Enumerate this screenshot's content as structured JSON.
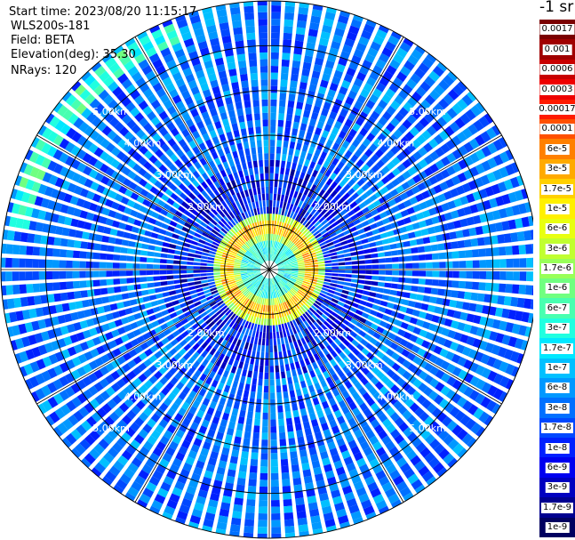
{
  "info": {
    "start_time": "Start time: 2023/08/20 11:15:17",
    "instrument": "WLS200s-181",
    "field": "Field: BETA",
    "elevation": "Elevation(deg): 35.30",
    "nrays": "NRays: 120"
  },
  "colorbar": {
    "unit": "-1 sr",
    "entries": [
      {
        "label": "0.0017",
        "color": "#7a0000"
      },
      {
        "label": "0.001",
        "color": "#a00000"
      },
      {
        "label": "0.0006",
        "color": "#c80000"
      },
      {
        "label": "0.0003",
        "color": "#ee0000"
      },
      {
        "label": "0.00017",
        "color": "#ff1a00"
      },
      {
        "label": "0.0001",
        "color": "#ff5000"
      },
      {
        "label": "6e-5",
        "color": "#ff8000"
      },
      {
        "label": "3e-5",
        "color": "#ffaa00"
      },
      {
        "label": "1.7e-5",
        "color": "#ffd000"
      },
      {
        "label": "1e-5",
        "color": "#fff000"
      },
      {
        "label": "6e-6",
        "color": "#e8ff10"
      },
      {
        "label": "3e-6",
        "color": "#c0ff30"
      },
      {
        "label": "1.7e-6",
        "color": "#98ff58"
      },
      {
        "label": "1e-6",
        "color": "#70ff80"
      },
      {
        "label": "6e-7",
        "color": "#48ffb0"
      },
      {
        "label": "3e-7",
        "color": "#20ffe0"
      },
      {
        "label": "1.7e-7",
        "color": "#00e8ff"
      },
      {
        "label": "1e-7",
        "color": "#00c0ff"
      },
      {
        "label": "6e-8",
        "color": "#0098ff"
      },
      {
        "label": "3e-8",
        "color": "#0070ff"
      },
      {
        "label": "1.7e-8",
        "color": "#0048ff"
      },
      {
        "label": "1e-8",
        "color": "#0020ff"
      },
      {
        "label": "6e-9",
        "color": "#0000f0"
      },
      {
        "label": "3e-9",
        "color": "#0000c0"
      },
      {
        "label": "1.7e-9",
        "color": "#000090"
      },
      {
        "label": "1e-9",
        "color": "#000060"
      }
    ]
  },
  "chart_data": {
    "type": "heatmap",
    "projection": "polar (PPI scan)",
    "field": "BETA",
    "elevation_deg": 35.3,
    "n_rays": 120,
    "range_rings_km": [
      1,
      2,
      3,
      4,
      5
    ],
    "range_labels": [
      "2.00km",
      "3.00km",
      "4.00km",
      "5.00km"
    ],
    "max_range_km": 6,
    "spokes_deg": [
      0,
      30,
      60,
      90,
      120,
      150,
      180,
      210,
      240,
      270,
      300,
      330
    ],
    "color_scale": "log",
    "value_range": [
      1e-09,
      0.0017
    ],
    "features": {
      "background_beta": 3e-08,
      "near_ring_range_km": [
        0.5,
        1.25
      ],
      "near_ring_beta": 6e-05,
      "inner_beta": 3e-07,
      "arc_range_km": 5.6,
      "arc_beta": 3e-07
    }
  }
}
